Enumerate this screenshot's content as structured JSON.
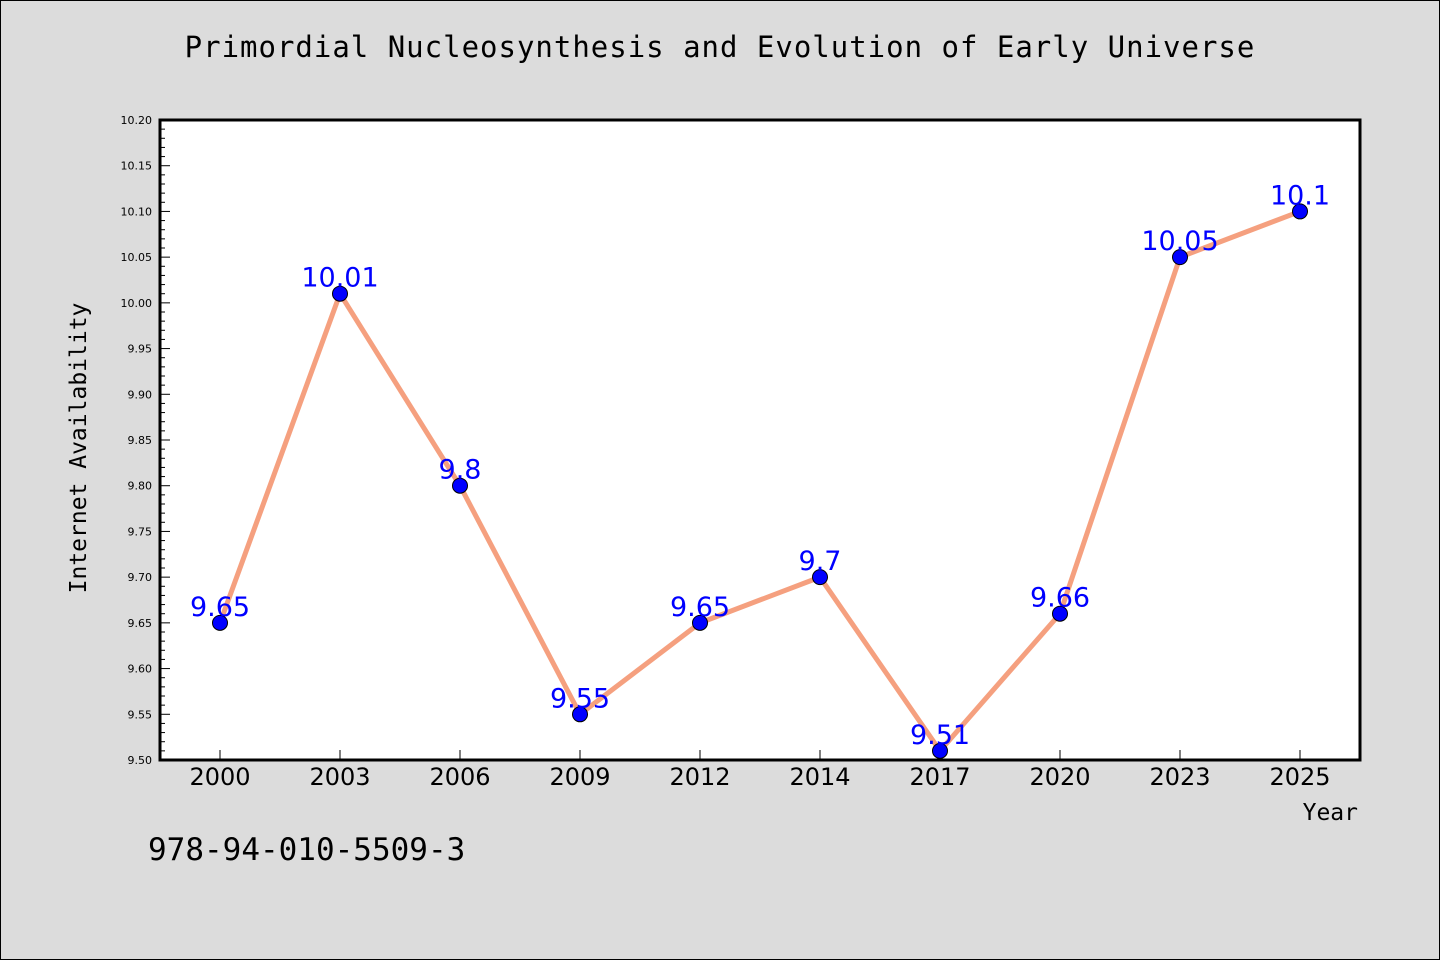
{
  "page": {
    "title": "Primordial Nucleosynthesis and Evolution of Early Universe",
    "footer_code": "978-94-010-5509-3"
  },
  "colors": {
    "background": "#dcdcdc",
    "plot_area": "#ffffff",
    "line": "#f5a07f",
    "marker": "#0000ff",
    "data_label": "#0000ff"
  },
  "chart_data": {
    "type": "line",
    "title": "Primordial Nucleosynthesis and Evolution of Early Universe",
    "xlabel": "Year",
    "ylabel": "Internet Availability",
    "categories": [
      "2000",
      "2003",
      "2006",
      "2009",
      "2012",
      "2014",
      "2017",
      "2020",
      "2023",
      "2025"
    ],
    "series": [
      {
        "values": [
          9.65,
          10.01,
          9.8,
          9.55,
          9.65,
          9.7,
          9.51,
          9.66,
          10.05,
          10.1
        ],
        "data_labels": [
          "9.65",
          "10.01",
          "9.8",
          "9.55",
          "9.65",
          "9.7",
          "9.51",
          "9.66",
          "10.05",
          "10.1"
        ]
      }
    ],
    "ylim": [
      9.5,
      10.2
    ],
    "y_ticks": [
      "9.50",
      "9.55",
      "9.60",
      "9.65",
      "9.70",
      "9.75",
      "9.80",
      "9.85",
      "9.90",
      "9.95",
      "10.00",
      "10.05",
      "10.10",
      "10.15",
      "10.20"
    ],
    "grid": false,
    "legend": "none"
  }
}
